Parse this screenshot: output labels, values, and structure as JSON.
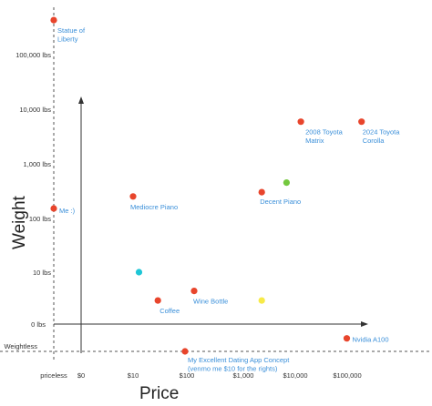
{
  "chart_data": {
    "type": "scatter",
    "xlabel": "Price",
    "ylabel": "Weight",
    "x_scale": "log",
    "y_scale": "log",
    "x_ticks": [
      "priceless",
      "$0",
      "$10",
      "$100",
      "$1,000",
      "$10,000",
      "$100,000"
    ],
    "y_ticks": [
      "Weightless",
      "0 lbs",
      "10 lbs",
      "100 lbs",
      "1,000 lbs",
      "10,000 lbs",
      "100,000 lbs"
    ],
    "points": [
      {
        "label": "Statue of Liberty",
        "x": "priceless",
        "y": 450000,
        "color": "#e8452c"
      },
      {
        "label": "Me :)",
        "x": "priceless",
        "y": 150,
        "color": "#e8452c"
      },
      {
        "label": "Mediocre Piano",
        "x": 1,
        "y": 250,
        "color": "#e8452c"
      },
      {
        "label": "",
        "x": 1.3,
        "y": 10,
        "color": "#1ec6d6"
      },
      {
        "label": "Coffee",
        "x": 3,
        "y": 3,
        "color": "#e8452c"
      },
      {
        "label": "Wine Bottle",
        "x": 15,
        "y": 4.5,
        "color": "#e8452c"
      },
      {
        "label": "My Excellent Dating App Concept (venmo me $10 for the rights)",
        "x": 10,
        "y": "weightless",
        "color": "#e8452c"
      },
      {
        "label": "Decent Piano",
        "x": 300,
        "y": 300,
        "color": "#e8452c"
      },
      {
        "label": "",
        "x": 300,
        "y": 3,
        "color": "#f7ea48"
      },
      {
        "label": "",
        "x": 900,
        "y": 450,
        "color": "#74c83e"
      },
      {
        "label": "2008 Toyota Matrix",
        "x": 1700,
        "y": 6000,
        "color": "#e8452c"
      },
      {
        "label": "2024 Toyota Corolla",
        "x": 25000,
        "y": 6000,
        "color": "#e8452c"
      },
      {
        "label": "Nvidia A100",
        "x": 13000,
        "y": 0.6,
        "color": "#e8452c"
      }
    ]
  }
}
